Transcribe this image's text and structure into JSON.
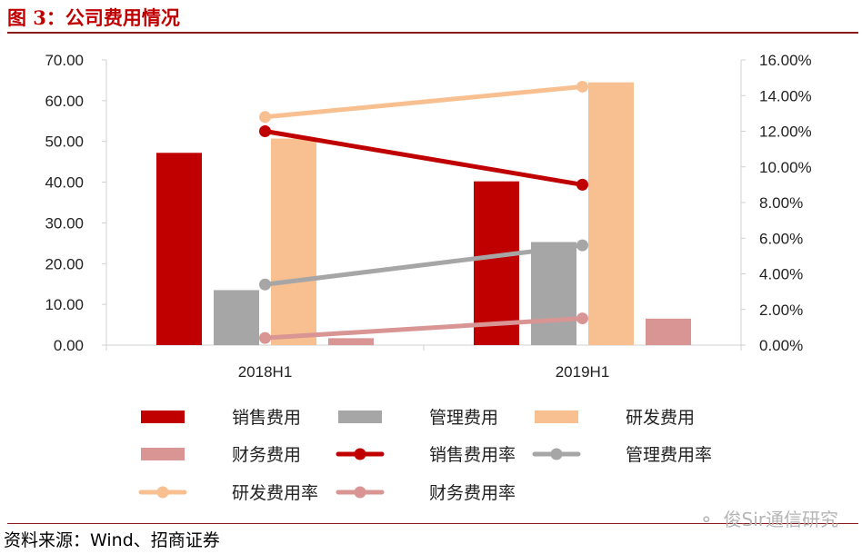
{
  "figure_title": "图 3：公司费用情况",
  "source_text": "资料来源：Wind、招商证券",
  "watermark_text": "俊Sir通信研究",
  "watermark_icon": "wechat-icon",
  "chart_data": {
    "type": "bar",
    "categories": [
      "2018H1",
      "2019H1"
    ],
    "left_axis": {
      "ylim": [
        0,
        70
      ],
      "ticks": [
        "0.00",
        "10.00",
        "20.00",
        "30.00",
        "40.00",
        "50.00",
        "60.00",
        "70.00"
      ]
    },
    "right_axis": {
      "ylim": [
        0,
        16
      ],
      "ticks": [
        "0.00%",
        "2.00%",
        "4.00%",
        "6.00%",
        "8.00%",
        "10.00%",
        "12.00%",
        "14.00%",
        "16.00%"
      ]
    },
    "bar_series": [
      {
        "name": "销售费用",
        "color": "#C00000",
        "values": [
          47.2,
          40.2
        ]
      },
      {
        "name": "管理费用",
        "color": "#A6A6A6",
        "values": [
          13.5,
          25.3
        ]
      },
      {
        "name": "研发费用",
        "color": "#F8C090",
        "values": [
          50.7,
          64.5
        ]
      },
      {
        "name": "财务费用",
        "color": "#D99594",
        "values": [
          1.7,
          6.5
        ]
      }
    ],
    "line_series": [
      {
        "name": "销售费用率",
        "color": "#C00000",
        "values": [
          12.0,
          9.0
        ]
      },
      {
        "name": "管理费用率",
        "color": "#A6A6A6",
        "values": [
          3.4,
          5.6
        ]
      },
      {
        "name": "研发费用率",
        "color": "#F8C090",
        "values": [
          12.8,
          14.5
        ]
      },
      {
        "name": "财务费用率",
        "color": "#D99594",
        "values": [
          0.4,
          1.5
        ]
      }
    ],
    "legend_order": [
      "销售费用",
      "管理费用",
      "研发费用",
      "财务费用",
      "销售费用率",
      "管理费用率",
      "研发费用率",
      "财务费用率"
    ],
    "grid": false,
    "legend_position": "bottom"
  }
}
